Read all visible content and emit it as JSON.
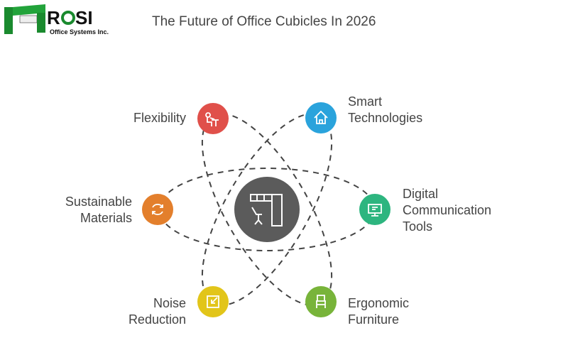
{
  "logo": {
    "name": "ROSI",
    "subtitle": "Office Systems Inc.",
    "color": "#1a8a2e"
  },
  "title": "The Future of Office Cubicles In 2026",
  "center": {
    "icon": "office-cubicle-icon",
    "color": "#5b5b5b"
  },
  "nodes": [
    {
      "label": "Flexibility",
      "icon": "person-at-desk-icon",
      "color": "#e0504a"
    },
    {
      "label": "Smart Technologies",
      "icon": "smart-home-icon",
      "color": "#2aa3dc"
    },
    {
      "label": "Digital Communication Tools",
      "icon": "monitor-chat-icon",
      "color": "#2db57f"
    },
    {
      "label": "Ergonomic Furniture",
      "icon": "chair-icon",
      "color": "#78b43a"
    },
    {
      "label": "Noise Reduction",
      "icon": "compress-arrows-icon",
      "color": "#e2c51a"
    },
    {
      "label": "Sustainable Materials",
      "icon": "recycle-icon",
      "color": "#e37f2c"
    }
  ]
}
